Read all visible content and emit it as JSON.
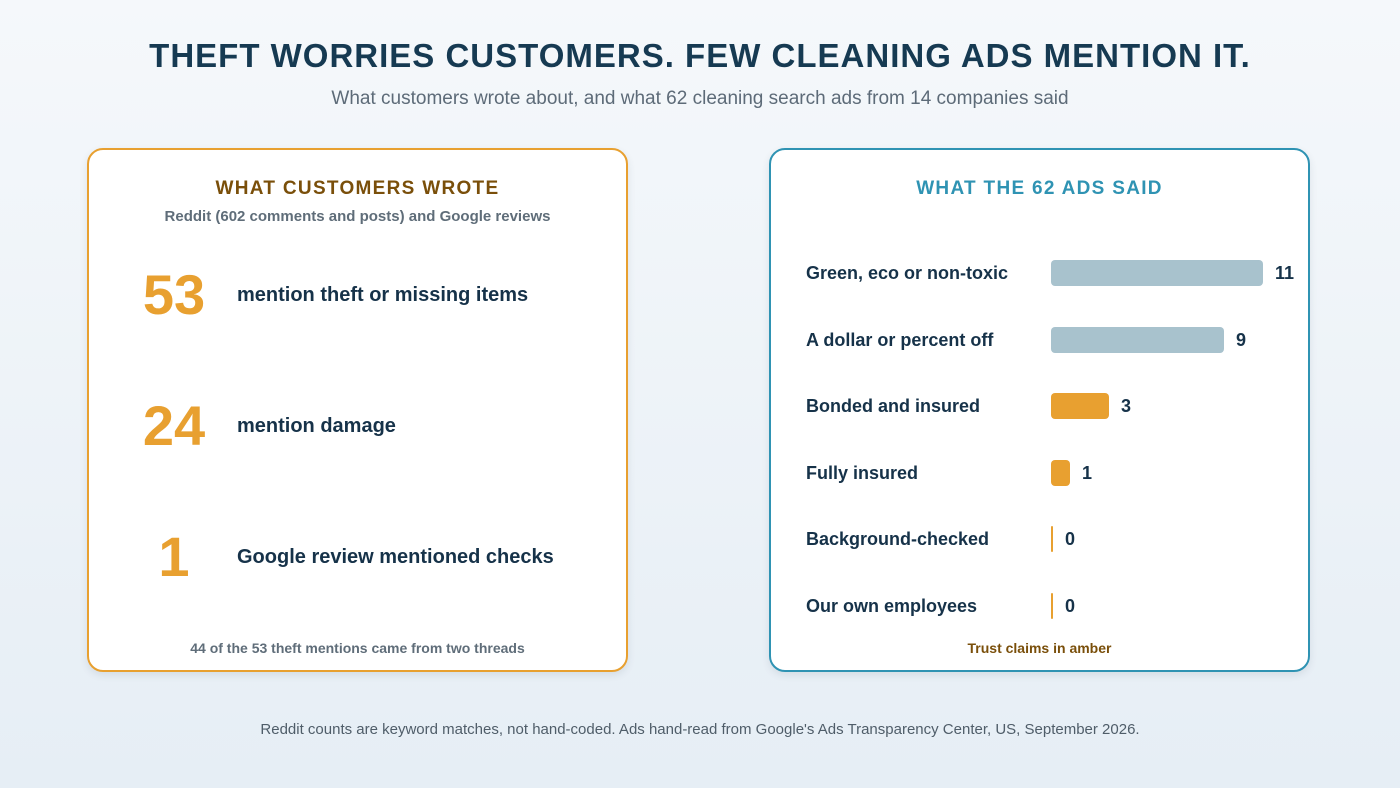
{
  "title": "THEFT WORRIES CUSTOMERS. FEW CLEANING ADS MENTION IT.",
  "subtitle": "What customers wrote about, and what 62 cleaning search ads from 14 companies said",
  "left_panel": {
    "heading": "WHAT CUSTOMERS WROTE",
    "source": "Reddit (602 comments and posts) and Google reviews",
    "stats": [
      {
        "value": "53",
        "label": "mention theft or missing items"
      },
      {
        "value": "24",
        "label": "mention damage"
      },
      {
        "value": "1",
        "label": "Google review mentioned checks"
      }
    ],
    "note": "44 of the 53 theft mentions came from two threads"
  },
  "right_panel": {
    "heading": "WHAT THE 62 ADS SAID",
    "note": "Trust claims in amber"
  },
  "colors": {
    "accent_amber": "#e8a030",
    "accent_teal": "#2f93b3",
    "bar_gray": "#a8c2cd",
    "text_dark": "#163249"
  },
  "chart_data": {
    "type": "bar",
    "orientation": "horizontal",
    "title": "WHAT THE 62 ADS SAID",
    "categories": [
      "Green, eco or non-toxic",
      "A dollar or percent off",
      "Bonded and insured",
      "Fully insured",
      "Background-checked",
      "Our own employees"
    ],
    "values": [
      11,
      9,
      3,
      1,
      0,
      0
    ],
    "trust_claim": [
      false,
      false,
      true,
      true,
      true,
      true
    ],
    "xlim": [
      0,
      11
    ],
    "grid": false,
    "legend": "none"
  },
  "footnote": "Reddit counts are keyword matches, not hand-coded. Ads hand-read from Google's Ads Transparency Center, US, September 2026."
}
